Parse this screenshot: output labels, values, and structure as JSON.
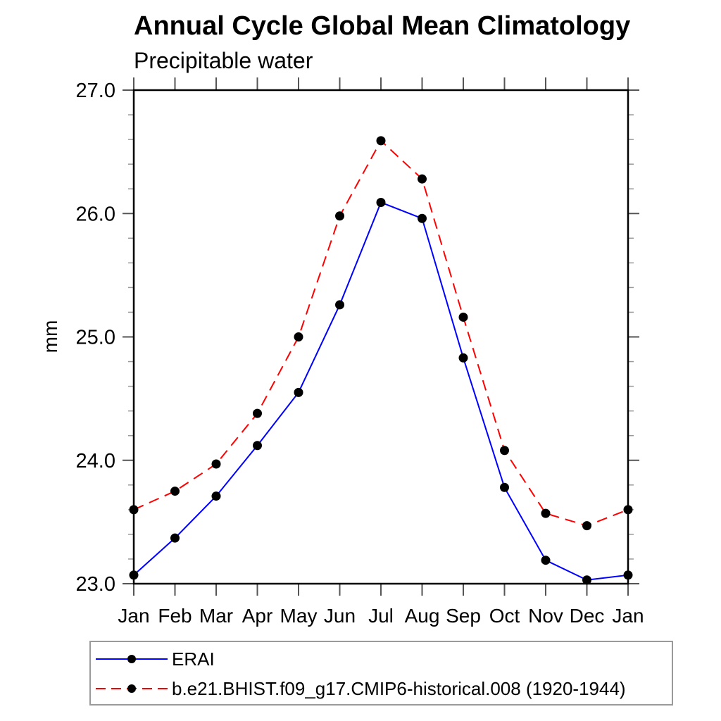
{
  "chart_data": {
    "type": "line",
    "title": "Annual Cycle Global Mean Climatology",
    "subtitle": "Precipitable water",
    "ylabel": "mm",
    "categories": [
      "Jan",
      "Feb",
      "Mar",
      "Apr",
      "May",
      "Jun",
      "Jul",
      "Aug",
      "Sep",
      "Oct",
      "Nov",
      "Dec",
      "Jan"
    ],
    "ylim": [
      23.0,
      27.0
    ],
    "ytick_major": [
      23.0,
      24.0,
      25.0,
      26.0,
      27.0
    ],
    "ytick_labels": [
      "23.0",
      "24.0",
      "25.0",
      "26.0",
      "27.0"
    ],
    "ytick_minor_step": 0.2,
    "grid": false,
    "legend_position": "bottom",
    "axis_color": "#000000",
    "major_tick_color": "#555555",
    "minor_tick_color": "#999999",
    "marker_color": "#000000",
    "series": [
      {
        "name": "ERAI",
        "color": "#0000ff",
        "line_style": "solid",
        "marker": "circle",
        "values": [
          23.07,
          23.37,
          23.71,
          24.12,
          24.55,
          25.26,
          26.09,
          25.96,
          24.83,
          23.78,
          23.19,
          23.03,
          23.07
        ]
      },
      {
        "name": "b.e21.BHIST.f09_g17.CMIP6-historical.008 (1920-1944)",
        "color": "#ff0000",
        "line_style": "dashed",
        "marker": "circle",
        "values": [
          23.6,
          23.75,
          23.97,
          24.38,
          25.0,
          25.98,
          26.59,
          26.28,
          25.16,
          24.08,
          23.57,
          23.47,
          23.6
        ]
      }
    ]
  }
}
